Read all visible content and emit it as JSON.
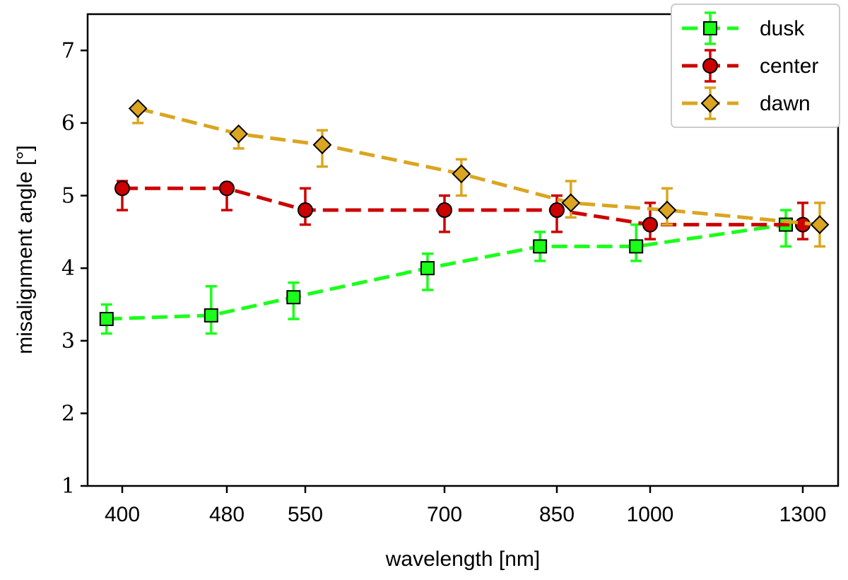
{
  "chart_data": {
    "type": "line",
    "title": "",
    "xlabel": "wavelength [nm]",
    "ylabel": "misalignment angle [°]",
    "x_tick_labels": [
      "400",
      "480",
      "550",
      "700",
      "850",
      "1000",
      "1300"
    ],
    "y_ticks": [
      1,
      2,
      3,
      4,
      5,
      6,
      7
    ],
    "ylim": [
      1,
      7.5
    ],
    "grid": false,
    "legend_position": "top-right",
    "series": [
      {
        "name": "dusk",
        "color": "#1aff1a",
        "marker": "square",
        "points": [
          {
            "x_index": 0,
            "offset": -0.25,
            "y": 3.3,
            "err_low": 0.2,
            "err_high": 0.2
          },
          {
            "x_index": 1,
            "offset": -0.25,
            "y": 3.35,
            "err_low": 0.25,
            "err_high": 0.4
          },
          {
            "x_index": 2,
            "offset": -0.25,
            "y": 3.6,
            "err_low": 0.3,
            "err_high": 0.2
          },
          {
            "x_index": 3,
            "offset": -0.25,
            "y": 4.0,
            "err_low": 0.3,
            "err_high": 0.2
          },
          {
            "x_index": 4,
            "offset": -0.25,
            "y": 4.3,
            "err_low": 0.2,
            "err_high": 0.2
          },
          {
            "x_index": 5,
            "offset": -0.25,
            "y": 4.3,
            "err_low": 0.2,
            "err_high": 0.3
          },
          {
            "x_index": 6,
            "offset": -0.25,
            "y": 4.6,
            "err_low": 0.3,
            "err_high": 0.2
          }
        ]
      },
      {
        "name": "center",
        "color": "#cc0000",
        "marker": "circle",
        "points": [
          {
            "x_index": 0,
            "offset": 0,
            "y": 5.1,
            "err_low": 0.3,
            "err_high": 0.1
          },
          {
            "x_index": 1,
            "offset": 0,
            "y": 5.1,
            "err_low": 0.3,
            "err_high": 0.0
          },
          {
            "x_index": 2,
            "offset": 0,
            "y": 4.8,
            "err_low": 0.2,
            "err_high": 0.3
          },
          {
            "x_index": 3,
            "offset": 0,
            "y": 4.8,
            "err_low": 0.3,
            "err_high": 0.2
          },
          {
            "x_index": 4,
            "offset": 0,
            "y": 4.8,
            "err_low": 0.3,
            "err_high": 0.2
          },
          {
            "x_index": 5,
            "offset": 0,
            "y": 4.6,
            "err_low": 0.2,
            "err_high": 0.3
          },
          {
            "x_index": 6,
            "offset": 0,
            "y": 4.6,
            "err_low": 0.2,
            "err_high": 0.3
          }
        ]
      },
      {
        "name": "dawn",
        "color": "#daa520",
        "marker": "diamond",
        "points": [
          {
            "x_index": 0,
            "offset": 0.25,
            "y": 6.2,
            "err_low": 0.2,
            "err_high": 0.0
          },
          {
            "x_index": 1,
            "offset": 0.25,
            "y": 5.85,
            "err_low": 0.2,
            "err_high": 0.0
          },
          {
            "x_index": 2,
            "offset": 0.25,
            "y": 5.7,
            "err_low": 0.3,
            "err_high": 0.2
          },
          {
            "x_index": 3,
            "offset": 0.25,
            "y": 5.3,
            "err_low": 0.3,
            "err_high": 0.2
          },
          {
            "x_index": 4,
            "offset": 0.25,
            "y": 4.9,
            "err_low": 0.2,
            "err_high": 0.3
          },
          {
            "x_index": 5,
            "offset": 0.25,
            "y": 4.8,
            "err_low": 0.2,
            "err_high": 0.3
          },
          {
            "x_index": 6,
            "offset": 0.25,
            "y": 4.6,
            "err_low": 0.3,
            "err_high": 0.3
          }
        ]
      }
    ]
  }
}
